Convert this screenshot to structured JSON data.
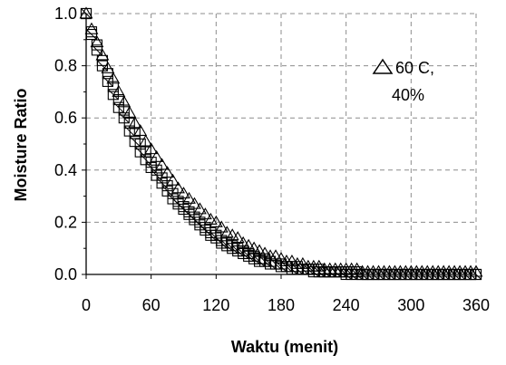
{
  "chart_data": {
    "type": "scatter",
    "title": "",
    "xlabel": "Waktu (menit)",
    "ylabel": "Moisture Ratio",
    "xlim": [
      0,
      360
    ],
    "ylim": [
      0,
      1.0
    ],
    "x_ticks": [
      "0",
      "60",
      "120",
      "180",
      "240",
      "300",
      "360"
    ],
    "y_ticks": [
      "0.0",
      "0.2",
      "0.4",
      "0.6",
      "0.8",
      "1.0"
    ],
    "grid": true,
    "legend_placement": "top-right",
    "legend": {
      "line1": "60 C,",
      "line2": "40%"
    },
    "series": [
      {
        "name": "60 C, 40%",
        "marker": "triangle",
        "x": [
          0,
          5,
          10,
          15,
          20,
          25,
          30,
          35,
          40,
          45,
          50,
          55,
          60,
          65,
          70,
          75,
          80,
          85,
          90,
          95,
          100,
          105,
          110,
          115,
          120,
          125,
          130,
          135,
          140,
          145,
          150,
          155,
          160,
          165,
          170,
          175,
          180,
          185,
          190,
          195,
          200,
          205,
          210,
          215,
          220,
          225,
          230,
          235,
          240,
          245,
          250,
          255,
          260,
          265,
          270,
          275,
          280,
          285,
          290,
          295,
          300,
          305,
          310,
          315,
          320,
          325,
          330,
          335,
          340,
          345,
          350,
          355,
          360
        ],
        "y": [
          1.0,
          0.94,
          0.89,
          0.84,
          0.79,
          0.75,
          0.7,
          0.66,
          0.62,
          0.58,
          0.55,
          0.51,
          0.48,
          0.45,
          0.42,
          0.39,
          0.36,
          0.33,
          0.31,
          0.29,
          0.27,
          0.25,
          0.23,
          0.21,
          0.2,
          0.18,
          0.16,
          0.15,
          0.14,
          0.12,
          0.11,
          0.1,
          0.09,
          0.08,
          0.07,
          0.07,
          0.06,
          0.05,
          0.05,
          0.04,
          0.04,
          0.03,
          0.03,
          0.03,
          0.02,
          0.02,
          0.02,
          0.02,
          0.02,
          0.02,
          0.02,
          0.01,
          0.01,
          0.01,
          0.01,
          0.01,
          0.01,
          0.01,
          0.01,
          0.01,
          0.01,
          0.01,
          0.01,
          0.01,
          0.01,
          0.01,
          0.01,
          0.01,
          0.01,
          0.01,
          0.01,
          0.01,
          0.01
        ]
      },
      {
        "marker": "square",
        "x": [
          0,
          5,
          10,
          15,
          20,
          25,
          30,
          35,
          40,
          45,
          50,
          55,
          60,
          65,
          70,
          75,
          80,
          85,
          90,
          95,
          100,
          105,
          110,
          115,
          120,
          125,
          130,
          135,
          140,
          145,
          150,
          155,
          160,
          165,
          170,
          175,
          180,
          185,
          190,
          195,
          200,
          205,
          210,
          215,
          220,
          225,
          230,
          235,
          240,
          245,
          250,
          255,
          260,
          265,
          270,
          275,
          280,
          285,
          290,
          295,
          300,
          305,
          310,
          315,
          320,
          325,
          330,
          335,
          340,
          345,
          350,
          355,
          360
        ],
        "y": [
          1.0,
          0.93,
          0.88,
          0.82,
          0.77,
          0.72,
          0.67,
          0.63,
          0.58,
          0.54,
          0.5,
          0.47,
          0.43,
          0.4,
          0.37,
          0.34,
          0.31,
          0.28,
          0.26,
          0.24,
          0.22,
          0.2,
          0.18,
          0.16,
          0.15,
          0.13,
          0.12,
          0.11,
          0.1,
          0.09,
          0.08,
          0.07,
          0.06,
          0.06,
          0.05,
          0.04,
          0.04,
          0.03,
          0.03,
          0.03,
          0.02,
          0.02,
          0.02,
          0.02,
          0.01,
          0.01,
          0.01,
          0.01,
          0.01,
          0.01,
          0.01,
          0.0,
          0.0,
          0.0,
          0.0,
          0.0,
          0.0,
          0.0,
          0.0,
          0.0,
          0.0,
          0.0,
          0.0,
          0.0,
          0.0,
          0.0,
          0.0,
          0.0,
          0.0,
          0.0,
          0.0,
          0.0,
          0.0
        ]
      },
      {
        "marker": "x-square",
        "x": [
          0,
          5,
          10,
          15,
          20,
          25,
          30,
          35,
          40,
          45,
          50,
          55,
          60,
          65,
          70,
          75,
          80,
          85,
          90,
          95,
          100,
          105,
          110,
          115,
          120,
          125,
          130,
          135,
          140,
          145,
          150,
          155,
          160,
          165,
          170,
          175,
          180,
          185,
          190,
          195,
          200,
          205,
          210,
          215,
          220,
          225,
          230,
          235,
          240,
          245,
          250,
          255,
          260,
          265,
          270,
          275,
          280,
          285,
          290,
          295,
          300,
          305,
          310,
          315,
          320,
          325,
          330,
          335,
          340,
          345,
          350,
          355,
          360
        ],
        "y": [
          1.0,
          0.92,
          0.86,
          0.8,
          0.74,
          0.69,
          0.64,
          0.6,
          0.55,
          0.51,
          0.47,
          0.44,
          0.41,
          0.38,
          0.35,
          0.32,
          0.29,
          0.27,
          0.25,
          0.23,
          0.21,
          0.19,
          0.17,
          0.15,
          0.14,
          0.12,
          0.11,
          0.1,
          0.09,
          0.08,
          0.07,
          0.06,
          0.05,
          0.05,
          0.04,
          0.04,
          0.03,
          0.03,
          0.02,
          0.02,
          0.02,
          0.02,
          0.01,
          0.01,
          0.01,
          0.01,
          0.01,
          0.01,
          0.0,
          0.0,
          0.0,
          0.0,
          0.0,
          0.0,
          0.0,
          0.0,
          0.0,
          0.0,
          0.0,
          0.0,
          0.0,
          0.0,
          0.0,
          0.0,
          0.0,
          0.0,
          0.0,
          0.0,
          0.0,
          0.0,
          0.0,
          0.0,
          0.0
        ]
      }
    ]
  }
}
